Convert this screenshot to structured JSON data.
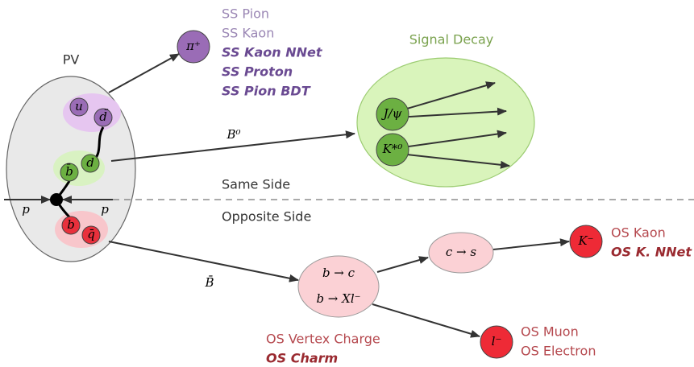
{
  "primary_vertex": {
    "label": "PV",
    "quarks": [
      "u",
      "d̄",
      "b̄",
      "d",
      "b",
      "q̄"
    ],
    "beam_labels": [
      "p",
      "p"
    ]
  },
  "same_side": {
    "label": "Same Side",
    "particle": "π⁺",
    "taggers": [
      "SS Pion",
      "SS Kaon",
      "SS Kaon NNet",
      "SS Proton",
      "SS Pion BDT"
    ]
  },
  "signal": {
    "label": "Signal Decay",
    "meson": "B⁰",
    "products": [
      "J/ψ",
      "K*⁰"
    ]
  },
  "opposite_side": {
    "label": "Opposite Side",
    "meson": "B̄",
    "decays": [
      "b → c",
      "b → Xl⁻"
    ],
    "vertex_taggers": [
      "OS Vertex Charge",
      "OS Charm"
    ],
    "charm_decay": "c → s",
    "kaon": {
      "particle": "K⁻",
      "taggers": [
        "OS Kaon",
        "OS K. NNet"
      ]
    },
    "lepton": {
      "particle": "l⁻",
      "taggers": [
        "OS Muon",
        "OS Electron"
      ]
    }
  }
}
